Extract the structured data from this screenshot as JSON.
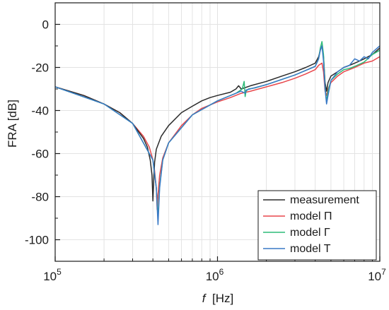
{
  "chart_data": {
    "type": "line",
    "xscale": "log",
    "xlim": [
      100000,
      10000000
    ],
    "ylim": [
      -110,
      10
    ],
    "grid": true,
    "legend_position": "bottom-right",
    "ylabel": "FRA [dB]",
    "xlabel": {
      "italic": "f",
      "rest": "  [Hz]"
    },
    "yticks": [
      {
        "value": 0,
        "label": "0"
      },
      {
        "value": -20,
        "label": "-20"
      },
      {
        "value": -40,
        "label": "-40"
      },
      {
        "value": -60,
        "label": "-60"
      },
      {
        "value": -80,
        "label": "-80"
      },
      {
        "value": -100,
        "label": "-100"
      }
    ],
    "xticks": [
      {
        "value": 100000,
        "base": "10",
        "exp": "5"
      },
      {
        "value": 1000000,
        "base": "10",
        "exp": "6"
      },
      {
        "value": 10000000,
        "base": "10",
        "exp": "7"
      }
    ],
    "series": [
      {
        "name": "model Π",
        "color": "#e8474c",
        "x": [
          100000,
          150000,
          200000,
          250000,
          300000,
          350000,
          380000,
          400000,
          410000,
          420000,
          425000,
          430000,
          440000,
          460000,
          500000,
          600000,
          700000,
          800000,
          1000000,
          1200000,
          1400000,
          1600000,
          2000000,
          2500000,
          3000000,
          3500000,
          4000000,
          4200000,
          4400000,
          4500000,
          4600000,
          4700000,
          4800000,
          5000000,
          5500000,
          6000000,
          6500000,
          7000000,
          7500000,
          8000000,
          9000000,
          10000000
        ],
        "y": [
          -29,
          -33,
          -37,
          -41,
          -46,
          -52,
          -57,
          -63,
          -68,
          -76,
          -86,
          -79,
          -70,
          -62,
          -55,
          -47,
          -42,
          -39,
          -36,
          -34,
          -32,
          -31,
          -29,
          -27,
          -25,
          -23,
          -21,
          -19,
          -18,
          -22,
          -31,
          -33,
          -30,
          -27,
          -24,
          -22,
          -21,
          -20,
          -19,
          -18,
          -17,
          -15
        ]
      },
      {
        "name": "measurement",
        "color": "#2b2b2b",
        "x": [
          100000,
          150000,
          200000,
          250000,
          300000,
          350000,
          370000,
          385000,
          395000,
          400000,
          405000,
          410000,
          420000,
          450000,
          500000,
          600000,
          700000,
          800000,
          900000,
          1000000,
          1200000,
          1300000,
          1350000,
          1400000,
          1600000,
          2000000,
          2500000,
          3000000,
          3500000,
          4000000,
          4200000,
          4300000,
          4400000,
          4500000,
          4600000,
          4700000,
          4800000,
          5000000,
          5500000,
          6000000,
          6500000,
          7000000,
          7500000,
          8000000,
          9000000,
          10000000
        ],
        "y": [
          -29,
          -33,
          -37,
          -41,
          -46,
          -53,
          -57,
          -63,
          -70,
          -82,
          -72,
          -64,
          -58,
          -52,
          -47,
          -41,
          -38,
          -35.5,
          -34,
          -33,
          -31.5,
          -30,
          -28.5,
          -30,
          -28.5,
          -26.5,
          -24,
          -22,
          -20,
          -18,
          -15,
          -12,
          -10,
          -15,
          -27,
          -31,
          -27,
          -24,
          -22,
          -20,
          -19,
          -18,
          -17,
          -16,
          -14,
          -11
        ]
      },
      {
        "name": "model Γ",
        "color": "#2dbb78",
        "x": [
          100000,
          200000,
          300000,
          400000,
          420000,
          430000,
          440000,
          460000,
          500000,
          700000,
          1000000,
          1300000,
          1420000,
          1460000,
          1480000,
          1500000,
          1550000,
          1700000,
          2000000,
          3000000,
          4000000,
          4200000,
          4300000,
          4400000,
          4500000,
          4600000,
          4700000,
          4800000,
          5000000,
          5500000,
          6000000,
          6500000,
          7000000,
          8000000,
          9000000,
          10000000
        ],
        "y": [
          -29,
          -37,
          -46,
          -63,
          -76,
          -90,
          -75,
          -63,
          -55,
          -42,
          -35.5,
          -32,
          -30,
          -26.5,
          -33.5,
          -31,
          -30,
          -29.5,
          -28,
          -23.5,
          -19.5,
          -16,
          -11,
          -8,
          -14,
          -29,
          -36,
          -31,
          -26,
          -23,
          -21,
          -20.5,
          -19.5,
          -17.5,
          -14,
          -12
        ]
      },
      {
        "name": "model T",
        "color": "#3979c6",
        "x": [
          100000,
          200000,
          300000,
          400000,
          420000,
          430000,
          440000,
          460000,
          500000,
          700000,
          1000000,
          1400000,
          1480000,
          1500000,
          2000000,
          3000000,
          4000000,
          4200000,
          4300000,
          4400000,
          4500000,
          4600000,
          4700000,
          4800000,
          5000000,
          5500000,
          6000000,
          6500000,
          7000000,
          7500000,
          8000000,
          8500000,
          9000000,
          10000000
        ],
        "y": [
          -29,
          -37,
          -46,
          -63,
          -76,
          -93,
          -76,
          -63,
          -55,
          -42,
          -35.5,
          -31,
          -32,
          -30.5,
          -28,
          -23.5,
          -19.5,
          -16,
          -12,
          -10,
          -17,
          -30,
          -37,
          -33,
          -26,
          -22,
          -20,
          -19,
          -16,
          -17,
          -15,
          -16,
          -13,
          -10
        ]
      }
    ],
    "legend_order": [
      "measurement",
      "model Π",
      "model Γ",
      "model T"
    ]
  }
}
